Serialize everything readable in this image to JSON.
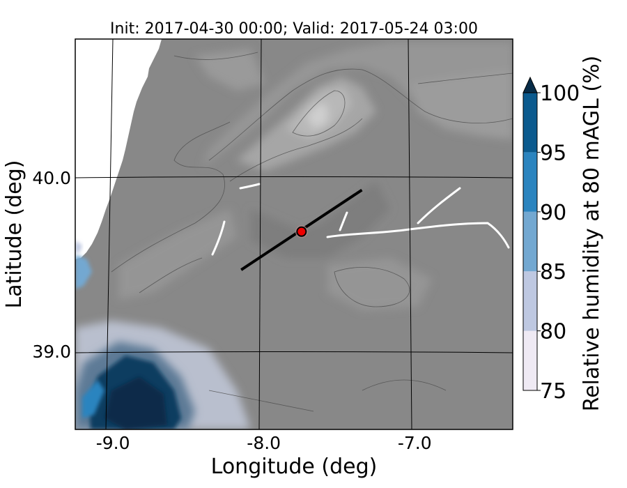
{
  "chart_data": {
    "type": "heatmap",
    "title": "Init: 2017-04-30 00:00; Valid: 2017-05-24 03:00",
    "xlabel": "Longitude (deg)",
    "ylabel": "Latitude (deg)",
    "xticks": [
      {
        "value": -9.0,
        "label": "-9.0"
      },
      {
        "value": -8.0,
        "label": "-8.0"
      },
      {
        "value": -7.0,
        "label": "-7.0"
      }
    ],
    "yticks": [
      {
        "value": 40.0,
        "label": "40.0"
      },
      {
        "value": 39.0,
        "label": "39.0"
      }
    ],
    "xlim": [
      -9.25,
      -6.35
    ],
    "ylim": [
      38.55,
      40.8
    ],
    "grid": true,
    "colorbar": {
      "label": "Relative humidity at 80 mAGL (%)",
      "levels": [
        75,
        80,
        85,
        90,
        95,
        100
      ],
      "tick_labels": [
        "75",
        "80",
        "85",
        "90",
        "95",
        "100"
      ],
      "colors": [
        "#efeaf4",
        "#bec8e1",
        "#73a8d1",
        "#2b84bf",
        "#0b5a8e"
      ],
      "extend_color": "#082c48",
      "extend": "max"
    },
    "background_color": "#888888",
    "cross_section_line": {
      "start": [
        -8.15,
        39.47
      ],
      "end": [
        -7.35,
        39.93
      ]
    },
    "marker": {
      "lon": -7.75,
      "lat": 39.69,
      "color": "#ee0000"
    }
  }
}
